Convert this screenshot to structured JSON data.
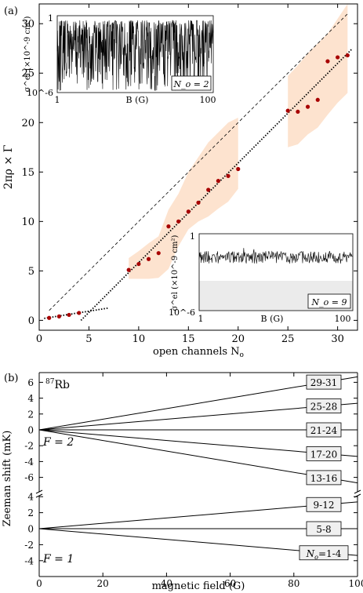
{
  "chart_data": [
    {
      "panel": "(a)",
      "type": "scatter",
      "xlabel": "open channels N_o",
      "ylabel": "2πρ × Γ",
      "xlim": [
        0,
        32
      ],
      "ylim": [
        -1,
        32
      ],
      "xticks": [
        "0",
        "5",
        "10",
        "15",
        "20",
        "25",
        "30"
      ],
      "yticks": [
        "0",
        "5",
        "10",
        "15",
        "20",
        "25",
        "30"
      ],
      "points": {
        "x": [
          1,
          2,
          3,
          4,
          9,
          10,
          11,
          12,
          13,
          14,
          15,
          16,
          17,
          18,
          19,
          20,
          25,
          26,
          27,
          28,
          29,
          30,
          31
        ],
        "y": [
          0.25,
          0.4,
          0.55,
          0.75,
          5.1,
          5.7,
          6.2,
          6.8,
          9.5,
          10.0,
          11.0,
          11.9,
          13.2,
          14.1,
          14.6,
          15.3,
          21.2,
          21.1,
          21.6,
          22.3,
          26.2,
          26.6,
          26.8
        ],
        "color": "#a80000"
      },
      "bands": [
        {
          "x": [
            9,
            10,
            11,
            12,
            13,
            14,
            15,
            16,
            17,
            18,
            19,
            20
          ],
          "low": [
            4.2,
            4.2,
            4.2,
            4.3,
            5.2,
            7.5,
            9.2,
            10.0,
            10.5,
            11.3,
            12.0,
            13.3
          ],
          "high": [
            6.3,
            7.0,
            7.8,
            8.5,
            11.2,
            12.8,
            15.0,
            16.5,
            18.0,
            19.0,
            20.0,
            20.5
          ]
        },
        {
          "x": [
            25,
            26,
            27,
            28,
            29,
            30,
            31
          ],
          "low": [
            17.5,
            17.8,
            18.8,
            19.5,
            20.8,
            22.0,
            23.0
          ],
          "high": [
            24.7,
            25.8,
            27.0,
            28.0,
            29.0,
            30.5,
            32.0
          ]
        }
      ],
      "color_band": "#fde3cf",
      "lines": [
        {
          "style": "dashed",
          "x": [
            1,
            31
          ],
          "y": [
            1,
            31
          ]
        },
        {
          "style": "dotted",
          "x": [
            4.2,
            31.5
          ],
          "y": [
            0,
            27.5
          ]
        },
        {
          "style": "dotted",
          "x": [
            0.5,
            7
          ],
          "y": [
            0.2,
            1.25
          ]
        }
      ],
      "insets": [
        {
          "position": "top-left",
          "ylabel": "σ^el (×10^-9 cm²)",
          "xlabel": "B (G)",
          "yticks": [
            "1",
            "10^-6"
          ],
          "xticks": [
            "1",
            "10",
            "100"
          ],
          "label": "N_o = 2"
        },
        {
          "position": "bottom-right",
          "ylabel": "σ^el (×10^-9 cm²)",
          "xlabel": "B (G)",
          "yticks": [
            "1",
            "10^-6"
          ],
          "xticks": [
            "1",
            "10",
            "100"
          ],
          "label": "N_o = 9"
        }
      ]
    },
    {
      "panel": "(b)",
      "type": "line",
      "title": "87Rb",
      "xlabel": "magnetic field (G)",
      "ylabel": "Zeeman shift (mK)",
      "xlim": [
        0,
        100
      ],
      "xticks": [
        "0",
        "20",
        "40",
        "60",
        "80",
        "100"
      ],
      "upper": {
        "label": "F = 2",
        "ylim": [
          -7,
          7
        ],
        "yticks": [
          "6",
          "4",
          "2",
          "0",
          "-2",
          "-4",
          "-6"
        ],
        "series": [
          {
            "name": "29-31",
            "end": 6.7
          },
          {
            "name": "25-28",
            "end": 3.35
          },
          {
            "name": "21-24",
            "end": 0
          },
          {
            "name": "17-20",
            "end": -3.35
          },
          {
            "name": "13-16",
            "end": -6.7
          }
        ]
      },
      "lower": {
        "label": "F = 1",
        "ylim": [
          -4,
          4
        ],
        "yticks": [
          "4",
          "2",
          "0",
          "-2",
          "-4"
        ],
        "series": [
          {
            "name": "9-12",
            "end": 3.35
          },
          {
            "name": "5-8",
            "end": 0
          },
          {
            "name": "N_o=1-4",
            "end": -3.35
          }
        ]
      }
    }
  ]
}
